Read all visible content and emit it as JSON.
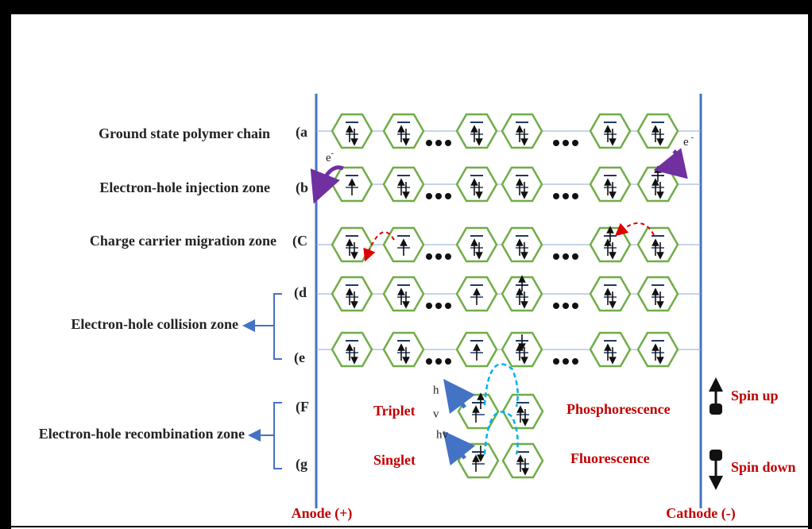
{
  "zones": [
    {
      "letter": "(a",
      "label": "Ground state polymer chain"
    },
    {
      "letter": "(b",
      "label": "Electron-hole injection zone"
    },
    {
      "letter": "(C",
      "label": "Charge carrier migration zone"
    },
    {
      "letter": "(d"
    },
    {
      "letter": "(e"
    },
    {
      "letter": "(F"
    },
    {
      "letter": "(g"
    }
  ],
  "group_labels": [
    "Electron-hole collision zone",
    "Electron-hole recombination zone"
  ],
  "electron_labels": [
    {
      "base": "e",
      "sup": "-"
    },
    {
      "base": "e",
      "sup": "-"
    }
  ],
  "emission": {
    "triplet": "Triplet",
    "singlet": "Singlet",
    "phosphorescence": "Phosphorescence",
    "fluorescence": "Fluorescence",
    "photon_upper": [
      "h",
      "v"
    ],
    "photon_lower": "hv"
  },
  "legend": {
    "spin_up": "Spin up",
    "spin_down": "Spin down"
  },
  "electrodes": {
    "anode": "Anode (+)",
    "cathode": "Cathode (-)"
  }
}
